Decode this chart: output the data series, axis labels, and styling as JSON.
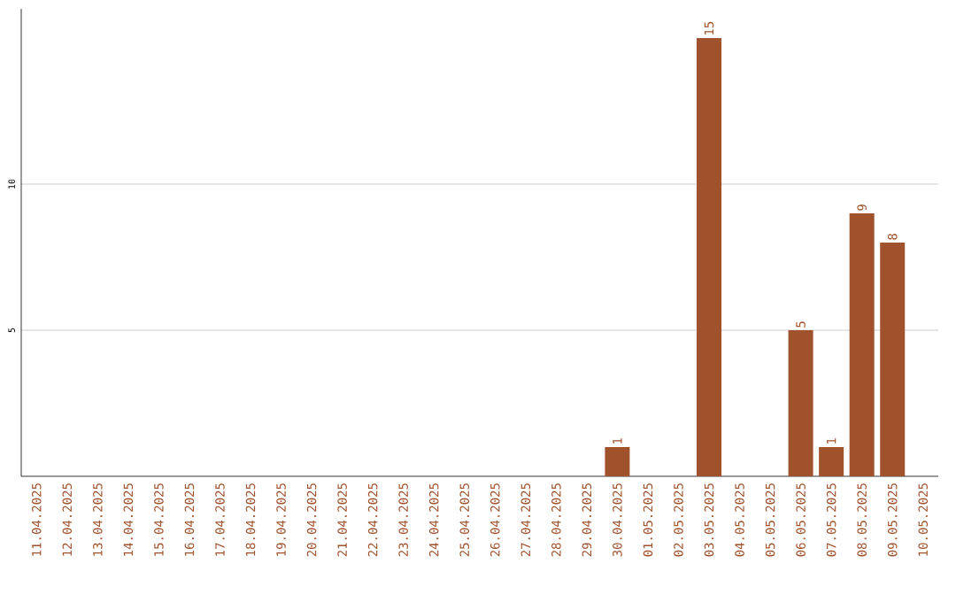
{
  "chart_data": {
    "type": "bar",
    "categories": [
      "11.04.2025",
      "12.04.2025",
      "13.04.2025",
      "14.04.2025",
      "15.04.2025",
      "16.04.2025",
      "17.04.2025",
      "18.04.2025",
      "19.04.2025",
      "20.04.2025",
      "21.04.2025",
      "22.04.2025",
      "23.04.2025",
      "24.04.2025",
      "25.04.2025",
      "26.04.2025",
      "27.04.2025",
      "28.04.2025",
      "29.04.2025",
      "30.04.2025",
      "01.05.2025",
      "02.05.2025",
      "03.05.2025",
      "04.05.2025",
      "05.05.2025",
      "06.05.2025",
      "07.05.2025",
      "08.05.2025",
      "09.05.2025",
      "10.05.2025"
    ],
    "values": [
      0,
      0,
      0,
      0,
      0,
      0,
      0,
      0,
      0,
      0,
      0,
      0,
      0,
      0,
      0,
      0,
      0,
      0,
      0,
      1,
      0,
      0,
      15,
      0,
      0,
      5,
      1,
      9,
      8,
      0
    ],
    "value_labels": [
      null,
      null,
      null,
      null,
      null,
      null,
      null,
      null,
      null,
      null,
      null,
      null,
      null,
      null,
      null,
      null,
      null,
      null,
      null,
      "1",
      null,
      null,
      "15",
      null,
      null,
      "5",
      "1",
      "9",
      "8",
      null
    ],
    "color": "#a0522d",
    "ylim": [
      0,
      16
    ],
    "yticks": [
      5,
      10
    ],
    "grid": "y"
  }
}
